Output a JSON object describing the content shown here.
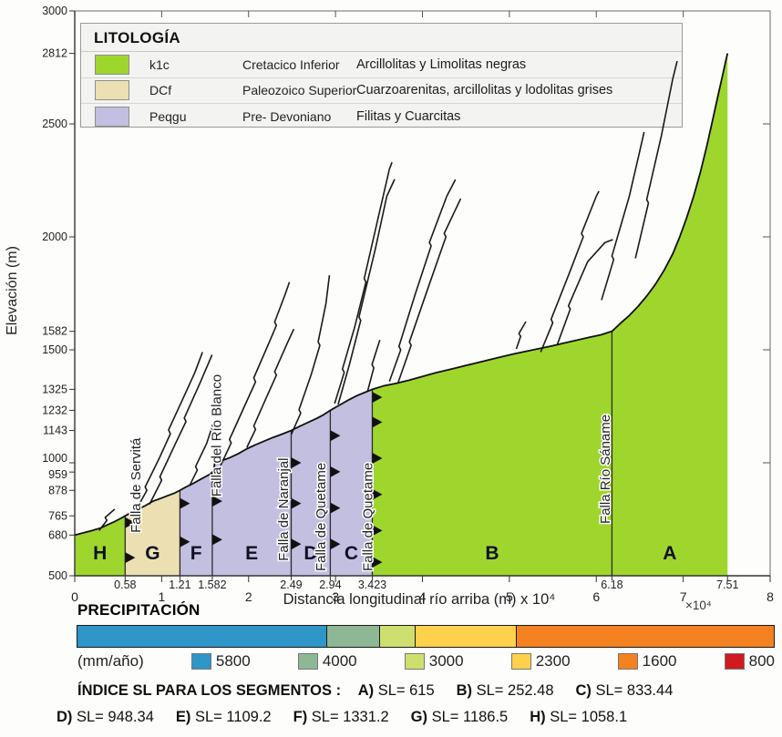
{
  "legend": {
    "title": "LITOLOGÍA",
    "rows": [
      {
        "unit": "k1c",
        "age": "Cretacico Inferior",
        "lithology": "Arcillolitas y Limolitas negras",
        "color": "#9fd62e"
      },
      {
        "unit": "DCf",
        "age": "Paleozoico Superior",
        "lithology": "Cuarzoarenitas, arcillolitas y lodolitas grises",
        "color": "#ecdfb2"
      },
      {
        "unit": "Peqgu",
        "age": "Pre- Devoniano",
        "lithology": "Filitas y Cuarcitas",
        "color": "#c3bfe1"
      }
    ]
  },
  "axes": {
    "y_label": "Elevación (m)",
    "x_label": "Distancia longitudinal río arriba (m) x 10⁴",
    "x_scale_note": "×10⁴"
  },
  "chart_data": {
    "type": "area",
    "x_range": [
      0,
      8
    ],
    "y_range": [
      500,
      3000
    ],
    "x_major_ticks": [
      0,
      1,
      2,
      3,
      4,
      5,
      6,
      7,
      8
    ],
    "x_boundary_ticks": [
      "0.58",
      "1.21",
      "1.582",
      "2.49",
      "2.94",
      "3.423",
      "6.18",
      "7.51"
    ],
    "y_ticks": [
      3000,
      2812,
      2500,
      2000,
      1582,
      1500,
      1325,
      1232,
      1143,
      1000,
      959,
      878,
      765,
      680,
      500
    ],
    "unit_colors": {
      "k1c": "#9fd62e",
      "DCf": "#ecdfb2",
      "Peqgu": "#c3bfe1"
    },
    "segments": [
      {
        "label": "H",
        "x0": 0,
        "x1": 0.58,
        "unit": "k1c"
      },
      {
        "label": "G",
        "x0": 0.58,
        "x1": 1.21,
        "unit": "DCf"
      },
      {
        "label": "F",
        "x0": 1.21,
        "x1": 1.582,
        "unit": "Peqgu"
      },
      {
        "label": "E",
        "x0": 1.582,
        "x1": 2.49,
        "unit": "Peqgu"
      },
      {
        "label": "D",
        "x0": 2.49,
        "x1": 2.94,
        "unit": "Peqgu"
      },
      {
        "label": "C",
        "x0": 2.94,
        "x1": 3.423,
        "unit": "Peqgu"
      },
      {
        "label": "B",
        "x0": 3.423,
        "x1": 6.18,
        "unit": "k1c"
      },
      {
        "label": "A",
        "x0": 6.18,
        "x1": 7.51,
        "unit": "k1c"
      }
    ],
    "faults": [
      {
        "name": "Falla de Servitá",
        "line_x": 0.58,
        "teeth_at": [
          580,
          735
        ],
        "label_x": 0.7,
        "label_bottom_e": 690
      },
      {
        "name": "Falla del Río Blanco",
        "line_x": 1.21,
        "teeth_at": [
          650,
          820
        ],
        "label_x": 1.63,
        "label_bottom_e": 850
      },
      {
        "name": "",
        "line_x": 1.582,
        "teeth_at": [
          660,
          830
        ],
        "label_x": null,
        "label_bottom_e": null
      },
      {
        "name": "Falla de Naranjal",
        "line_x": 2.49,
        "teeth_at": [
          640,
          820,
          1000
        ],
        "label_x": 2.4,
        "label_bottom_e": 565
      },
      {
        "name": "Falla de Quetame",
        "line_x": 2.94,
        "teeth_at": [
          640,
          800,
          960,
          1120
        ],
        "label_x": 2.83,
        "label_bottom_e": 520
      },
      {
        "name": "Falla de Quetame",
        "line_x": 3.423,
        "teeth_at": [
          560,
          700,
          860,
          1020,
          1180,
          1290
        ],
        "label_x": 3.37,
        "label_bottom_e": 520
      },
      {
        "name": "Falla Río Sáname",
        "line_x": 6.18,
        "teeth_at": [],
        "label_x": 6.1,
        "label_bottom_e": 730
      }
    ],
    "main_profile": [
      [
        0,
        680
      ],
      [
        0.12,
        692
      ],
      [
        0.2,
        700
      ],
      [
        0.3,
        712
      ],
      [
        0.38,
        726
      ],
      [
        0.45,
        738
      ],
      [
        0.52,
        752
      ],
      [
        0.58,
        765
      ],
      [
        0.66,
        782
      ],
      [
        0.74,
        796
      ],
      [
        0.82,
        812
      ],
      [
        0.9,
        830
      ],
      [
        1.0,
        844
      ],
      [
        1.08,
        856
      ],
      [
        1.15,
        866
      ],
      [
        1.21,
        878
      ],
      [
        1.28,
        893
      ],
      [
        1.36,
        908
      ],
      [
        1.44,
        925
      ],
      [
        1.5,
        938
      ],
      [
        1.56,
        950
      ],
      [
        1.582,
        959
      ],
      [
        1.6,
        960
      ],
      [
        1.61,
        1002
      ],
      [
        1.68,
        1008
      ],
      [
        1.78,
        1022
      ],
      [
        1.88,
        1040
      ],
      [
        1.98,
        1062
      ],
      [
        2.08,
        1080
      ],
      [
        2.18,
        1096
      ],
      [
        2.28,
        1112
      ],
      [
        2.38,
        1126
      ],
      [
        2.49,
        1143
      ],
      [
        2.58,
        1160
      ],
      [
        2.68,
        1178
      ],
      [
        2.78,
        1196
      ],
      [
        2.86,
        1212
      ],
      [
        2.94,
        1232
      ],
      [
        3.04,
        1254
      ],
      [
        3.14,
        1276
      ],
      [
        3.24,
        1296
      ],
      [
        3.34,
        1312
      ],
      [
        3.423,
        1325
      ],
      [
        3.55,
        1340
      ],
      [
        3.7,
        1352
      ],
      [
        3.85,
        1366
      ],
      [
        4.0,
        1382
      ],
      [
        4.15,
        1398
      ],
      [
        4.3,
        1412
      ],
      [
        4.45,
        1426
      ],
      [
        4.6,
        1440
      ],
      [
        4.75,
        1454
      ],
      [
        4.9,
        1468
      ],
      [
        5.05,
        1482
      ],
      [
        5.2,
        1494
      ],
      [
        5.35,
        1506
      ],
      [
        5.5,
        1518
      ],
      [
        5.65,
        1532
      ],
      [
        5.8,
        1545
      ],
      [
        5.95,
        1558
      ],
      [
        6.05,
        1566
      ],
      [
        6.18,
        1582
      ],
      [
        6.28,
        1618
      ],
      [
        6.38,
        1652
      ],
      [
        6.48,
        1692
      ],
      [
        6.58,
        1738
      ],
      [
        6.68,
        1790
      ],
      [
        6.78,
        1852
      ],
      [
        6.88,
        1925
      ],
      [
        6.96,
        2000
      ],
      [
        7.04,
        2085
      ],
      [
        7.12,
        2180
      ],
      [
        7.2,
        2290
      ],
      [
        7.27,
        2400
      ],
      [
        7.34,
        2520
      ],
      [
        7.4,
        2625
      ],
      [
        7.45,
        2710
      ],
      [
        7.49,
        2780
      ],
      [
        7.51,
        2812
      ]
    ],
    "tributaries": [
      [
        [
          0.28,
          700
        ],
        [
          0.37,
          745
        ],
        [
          0.35,
          758
        ],
        [
          0.46,
          795
        ]
      ],
      [
        [
          0.7,
          788
        ],
        [
          0.83,
          878
        ],
        [
          0.81,
          893
        ],
        [
          0.97,
          1018
        ],
        [
          1.1,
          1128
        ],
        [
          1.08,
          1146
        ],
        [
          1.25,
          1288
        ],
        [
          1.38,
          1398
        ],
        [
          1.47,
          1490
        ]
      ],
      [
        [
          0.86,
          816
        ],
        [
          1.0,
          923
        ],
        [
          0.98,
          938
        ],
        [
          1.15,
          1078
        ],
        [
          1.28,
          1183
        ],
        [
          1.26,
          1198
        ],
        [
          1.44,
          1352
        ],
        [
          1.58,
          1478
        ]
      ],
      [
        [
          1.32,
          898
        ],
        [
          1.41,
          968
        ],
        [
          1.39,
          983
        ],
        [
          1.52,
          1088
        ],
        [
          1.6,
          1183
        ]
      ],
      [
        [
          1.66,
          973
        ],
        [
          1.8,
          1088
        ],
        [
          1.78,
          1103
        ],
        [
          1.95,
          1248
        ],
        [
          2.08,
          1358
        ],
        [
          2.06,
          1376
        ],
        [
          2.22,
          1518
        ],
        [
          2.32,
          1608
        ],
        [
          2.3,
          1623
        ],
        [
          2.42,
          1745
        ],
        [
          2.47,
          1800
        ]
      ],
      [
        [
          1.98,
          1068
        ],
        [
          2.08,
          1148
        ],
        [
          2.06,
          1163
        ],
        [
          2.2,
          1285
        ],
        [
          2.32,
          1388
        ],
        [
          2.3,
          1403
        ],
        [
          2.44,
          1525
        ],
        [
          2.52,
          1592
        ]
      ],
      [
        [
          2.49,
          1125
        ],
        [
          2.6,
          1220
        ],
        [
          2.58,
          1235
        ],
        [
          2.72,
          1390
        ],
        [
          2.82,
          1520
        ],
        [
          2.8,
          1535
        ],
        [
          2.89,
          1705
        ],
        [
          2.93,
          1830
        ]
      ],
      [
        [
          2.99,
          1262
        ],
        [
          3.1,
          1400
        ],
        [
          3.08,
          1415
        ],
        [
          3.22,
          1600
        ],
        [
          3.35,
          1800
        ],
        [
          3.33,
          1815
        ],
        [
          3.5,
          2100
        ],
        [
          3.62,
          2300
        ],
        [
          3.65,
          2330
        ]
      ],
      [
        [
          3.03,
          1258
        ],
        [
          3.16,
          1435
        ],
        [
          3.29,
          1630
        ],
        [
          3.27,
          1645
        ],
        [
          3.46,
          1950
        ],
        [
          3.59,
          2180
        ],
        [
          3.68,
          2255
        ]
      ],
      [
        [
          3.37,
          1318
        ],
        [
          3.44,
          1420
        ],
        [
          3.42,
          1435
        ],
        [
          3.51,
          1544
        ]
      ],
      [
        [
          3.62,
          1360
        ],
        [
          3.75,
          1500
        ],
        [
          3.73,
          1515
        ],
        [
          3.92,
          1750
        ],
        [
          4.1,
          1960
        ],
        [
          4.08,
          1975
        ],
        [
          4.28,
          2180
        ],
        [
          4.38,
          2254
        ]
      ],
      [
        [
          3.72,
          1355
        ],
        [
          3.87,
          1520
        ],
        [
          3.85,
          1535
        ],
        [
          4.07,
          1780
        ],
        [
          4.27,
          2000
        ],
        [
          4.25,
          2015
        ],
        [
          4.44,
          2169
        ]
      ],
      [
        [
          5.08,
          1504
        ],
        [
          5.13,
          1560
        ],
        [
          5.11,
          1572
        ],
        [
          5.19,
          1625
        ]
      ],
      [
        [
          5.36,
          1490
        ],
        [
          5.5,
          1620
        ],
        [
          5.48,
          1635
        ],
        [
          5.68,
          1830
        ],
        [
          5.85,
          2000
        ],
        [
          5.83,
          2015
        ],
        [
          6.0,
          2180
        ],
        [
          6.03,
          2202
        ]
      ],
      [
        [
          5.55,
          1522
        ],
        [
          5.7,
          1680
        ],
        [
          5.68,
          1695
        ],
        [
          5.9,
          1890
        ],
        [
          6.1,
          1975
        ],
        [
          6.19,
          1988
        ]
      ],
      [
        [
          6.06,
          1720
        ],
        [
          6.2,
          1900
        ],
        [
          6.18,
          1915
        ],
        [
          6.38,
          2180
        ],
        [
          6.5,
          2380
        ],
        [
          6.55,
          2464
        ]
      ],
      [
        [
          6.45,
          1905
        ],
        [
          6.6,
          2150
        ],
        [
          6.58,
          2165
        ],
        [
          6.75,
          2450
        ],
        [
          6.88,
          2700
        ],
        [
          6.93,
          2778
        ]
      ]
    ]
  },
  "precipitation": {
    "title": "PRECIPITACIÓN",
    "unit_label": "(mm/año)",
    "bar": [
      {
        "value": "5800",
        "color": "#2e96c8",
        "frac": 0.359
      },
      {
        "value": "4000",
        "color": "#8eb795",
        "frac": 0.076
      },
      {
        "value": "3000",
        "color": "#cfdf6f",
        "frac": 0.051
      },
      {
        "value": "2300",
        "color": "#fdd14c",
        "frac": 0.145
      },
      {
        "value": "1600",
        "color": "#f58220",
        "frac": 0.369
      }
    ],
    "legend": [
      {
        "value": "5800",
        "color": "#2e96c8"
      },
      {
        "value": "4000",
        "color": "#8eb795"
      },
      {
        "value": "3000",
        "color": "#cfdf6f"
      },
      {
        "value": "2300",
        "color": "#fdd14c"
      },
      {
        "value": "1600",
        "color": "#f58220"
      },
      {
        "value": "800",
        "color": "#d11920"
      }
    ]
  },
  "sl_index": {
    "heading": "ÍNDICE SL PARA LOS SEGMENTOS :",
    "entries": [
      {
        "seg": "A)",
        "val": "SL= 615"
      },
      {
        "seg": "B)",
        "val": "SL= 252.48"
      },
      {
        "seg": "C)",
        "val": "SL= 833.44"
      },
      {
        "seg": "D)",
        "val": "SL= 948.34"
      },
      {
        "seg": "E)",
        "val": "SL= 1109.2"
      },
      {
        "seg": "F)",
        "val": "SL= 1331.2"
      },
      {
        "seg": "G)",
        "val": "SL= 1186.5"
      },
      {
        "seg": "H)",
        "val": "SL= 1058.1"
      }
    ],
    "line1_count": 3
  }
}
